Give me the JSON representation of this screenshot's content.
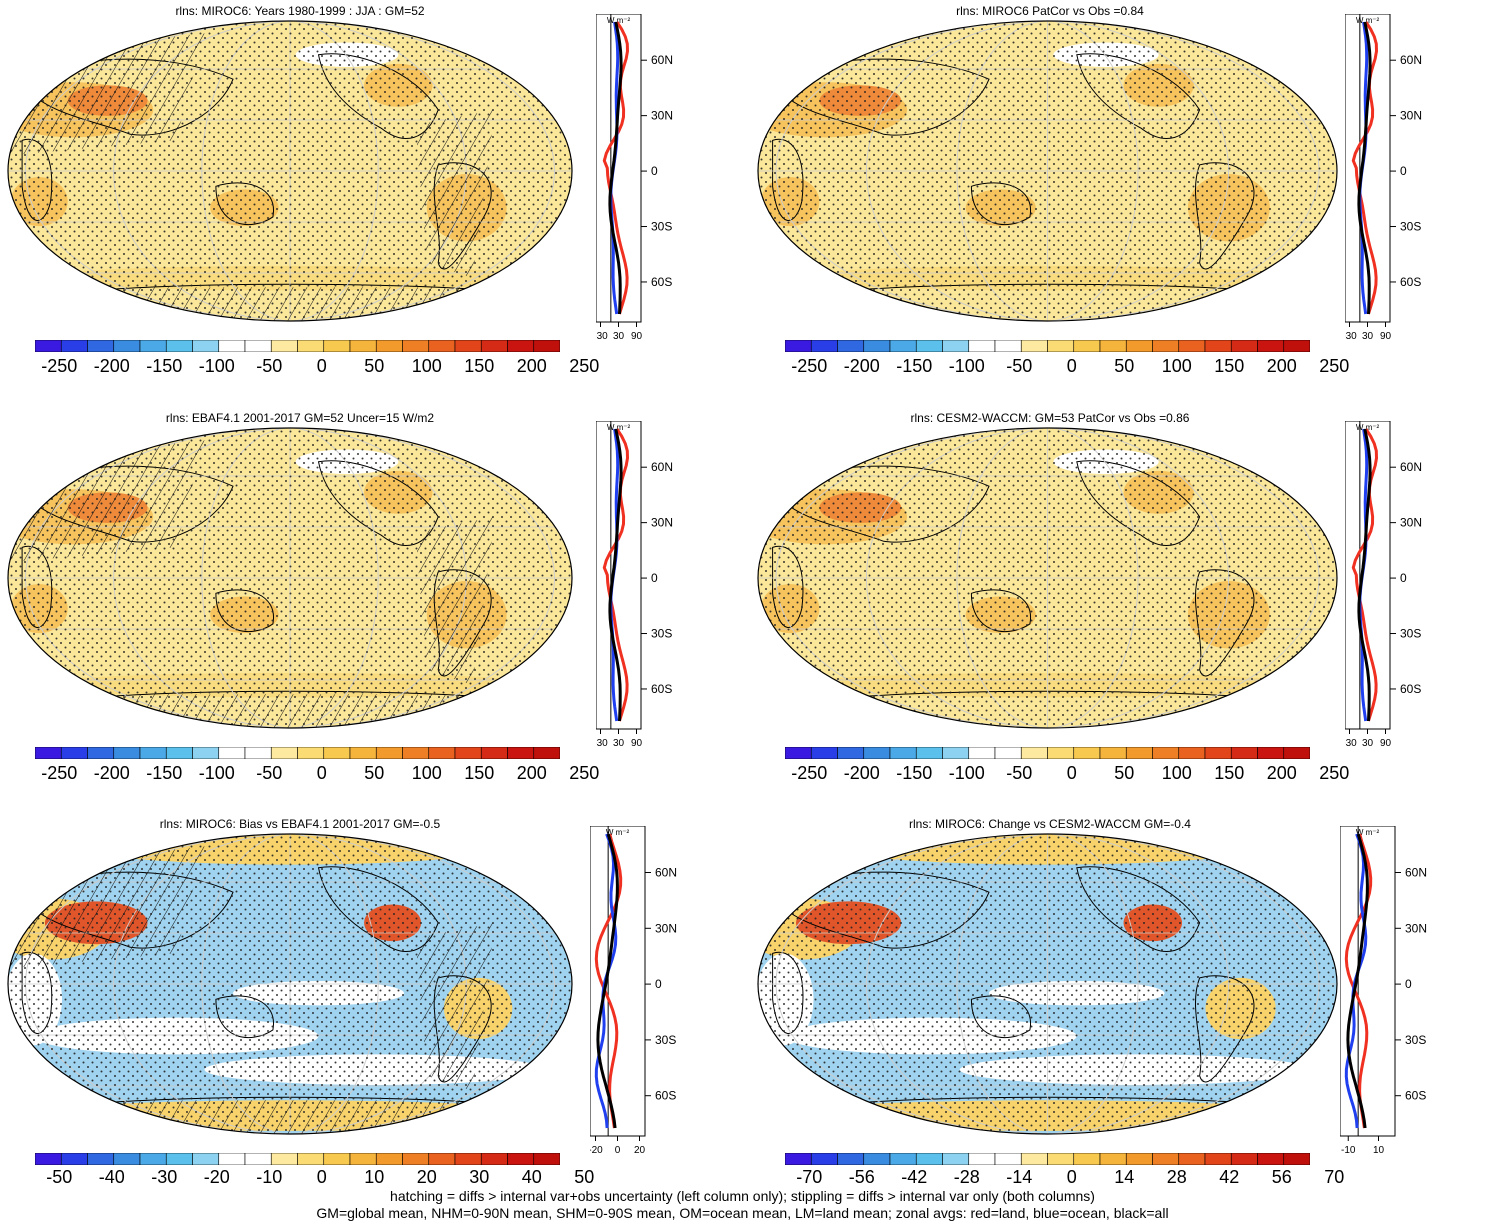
{
  "panels": [
    {
      "title": "rlns: MIROC6: Years 1980-1999 : JJA : GM=52",
      "scheme": "abs",
      "hatch": true,
      "cbar": [
        "-250",
        "-200",
        "-150",
        "-100",
        "-50",
        "0",
        "50",
        "100",
        "150",
        "200",
        "250"
      ],
      "zonal_ticks": [
        "-30",
        "30",
        "90"
      ],
      "unit": "W m⁻²"
    },
    {
      "title": "rlns: MIROC6 PatCor vs Obs =0.84",
      "scheme": "abs",
      "hatch": false,
      "cbar": [
        "-250",
        "-200",
        "-150",
        "-100",
        "-50",
        "0",
        "50",
        "100",
        "150",
        "200",
        "250"
      ],
      "zonal_ticks": [
        "-30",
        "30",
        "90"
      ],
      "unit": "W m⁻²"
    },
    {
      "title": "rlns: EBAF4.1 2001-2017 GM=52 Uncer=15 W/m2",
      "scheme": "abs",
      "hatch": true,
      "cbar": [
        "-250",
        "-200",
        "-150",
        "-100",
        "-50",
        "0",
        "50",
        "100",
        "150",
        "200",
        "250"
      ],
      "zonal_ticks": [
        "-30",
        "30",
        "90"
      ],
      "unit": "W m⁻²"
    },
    {
      "title": "rlns: CESM2-WACCM: GM=53 PatCor vs Obs =0.86",
      "scheme": "abs",
      "hatch": false,
      "cbar": [
        "-250",
        "-200",
        "-150",
        "-100",
        "-50",
        "0",
        "50",
        "100",
        "150",
        "200",
        "250"
      ],
      "zonal_ticks": [
        "-30",
        "30",
        "90"
      ],
      "unit": "W m⁻²"
    },
    {
      "title": "rlns: MIROC6: Bias vs EBAF4.1 2001-2017 GM=-0.5",
      "scheme": "diff",
      "hatch": true,
      "cbar": [
        "-50",
        "-40",
        "-30",
        "-20",
        "-10",
        "0",
        "10",
        "20",
        "30",
        "40",
        "50"
      ],
      "zonal_ticks": [
        "-20",
        "0",
        "20"
      ],
      "unit": "W m⁻²"
    },
    {
      "title": "rlns: MIROC6: Change vs CESM2-WACCM GM=-0.4",
      "scheme": "diff",
      "hatch": false,
      "cbar": [
        "-70",
        "-56",
        "-42",
        "-28",
        "-14",
        "0",
        "14",
        "28",
        "42",
        "56",
        "70"
      ],
      "zonal_ticks": [
        "-10",
        "10"
      ],
      "unit": "W m⁻²"
    }
  ],
  "lat_labels": [
    "60N",
    "30N",
    "0",
    "30S",
    "60S"
  ],
  "colors": {
    "abs_base": "#fbe79a",
    "abs_warm": "#f6c35c",
    "abs_hot": "#ee8a3a",
    "diff_cool": "#9fd3ef",
    "diff_warm": "#f8d36b",
    "diff_hot": "#e0552a",
    "land_line": "#f03020",
    "ocean_line": "#2040f0",
    "all_line": "#000000"
  },
  "footer": {
    "line1": "hatching = diffs > internal var+obs uncertainty (left column only); stippling = diffs > internal var only (both columns)",
    "line2": "GM=global mean, NHM=0-90N mean, SHM=0-90S mean, OM=ocean mean, LM=land mean; zonal avgs: red=land, blue=ocean, black=all"
  }
}
